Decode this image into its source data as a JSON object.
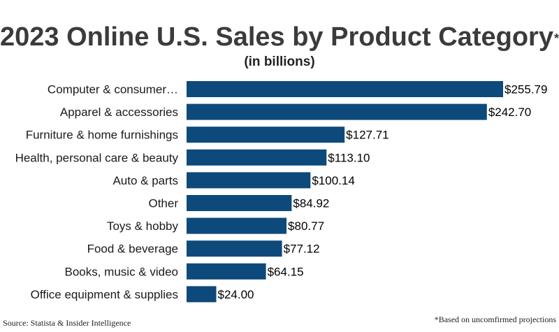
{
  "title": "2023 Online U.S. Sales by Product Category",
  "title_mark": "*",
  "subtitle": "(in billions)",
  "source": "Source: Statista & Insider Intelligence",
  "footnote": "*Based on uncomfirmed projections",
  "colors": {
    "bar": "#0d4a7b",
    "title": "#3b3b3b",
    "text": "#1a1a1a"
  },
  "chart_data": {
    "type": "bar",
    "orientation": "horizontal",
    "categories": [
      "Computer & consumer…",
      "Apparel & accessories",
      "Furniture & home furnishings",
      "Health, personal care & beauty",
      "Auto & parts",
      "Other",
      "Toys & hobby",
      "Food & beverage",
      "Books, music & video",
      "Office equipment & supplies"
    ],
    "values": [
      255.79,
      242.7,
      127.71,
      113.1,
      100.14,
      84.92,
      80.77,
      77.12,
      64.15,
      24.0
    ],
    "value_labels": [
      "$255.79",
      "$242.70",
      "$127.71",
      "$113.10",
      "$100.14",
      "$84.92",
      "$80.77",
      "$77.12",
      "$64.15",
      "$24.00"
    ],
    "title": "2023 Online U.S. Sales by Product Category",
    "subtitle": "(in billions)",
    "xlabel": "",
    "ylabel": "",
    "xlim": [
      0,
      255.79
    ],
    "grid": false,
    "legend": "none"
  }
}
